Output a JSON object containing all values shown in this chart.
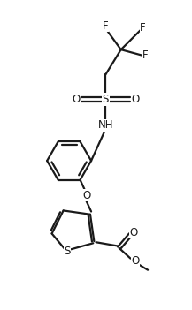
{
  "bg_color": "#ffffff",
  "line_color": "#1a1a1a",
  "line_width": 1.6,
  "font_size": 8.5,
  "figsize": [
    2.17,
    3.51
  ],
  "dpi": 100,
  "xlim": [
    0,
    10
  ],
  "ylim": [
    0,
    16
  ]
}
